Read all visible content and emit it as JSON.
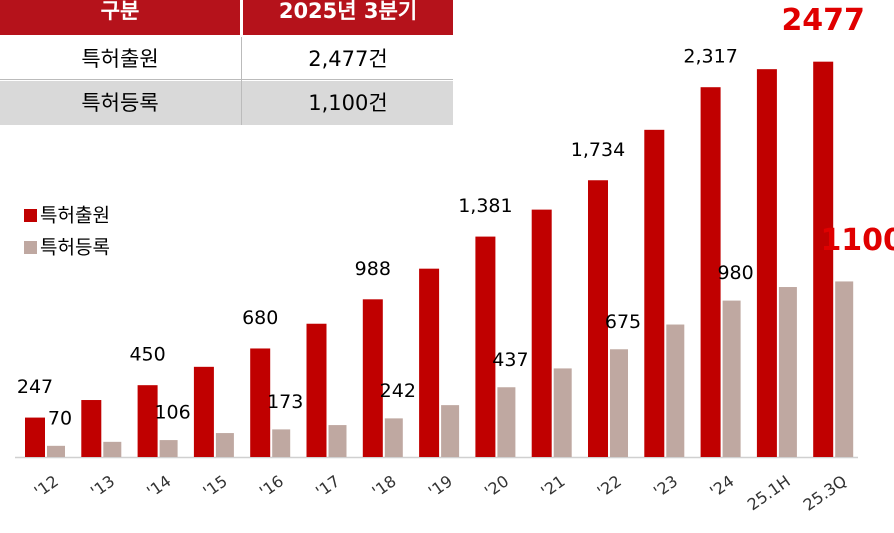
{
  "table": {
    "header": [
      "구분",
      "2025년 3분기"
    ],
    "rows": [
      [
        "특허출원",
        "2,477건"
      ],
      [
        "특허등록",
        "1,100건"
      ]
    ]
  },
  "chart_data": {
    "type": "bar",
    "categories": [
      "'12",
      "'13",
      "'14",
      "'15",
      "'16",
      "'17",
      "'18",
      "'19",
      "'20",
      "'21",
      "'22",
      "'23",
      "'24",
      "25.1H",
      "25.3Q"
    ],
    "series": [
      {
        "name": "특허출원",
        "color": "#c00000",
        "values": [
          247,
          357,
          450,
          565,
          680,
          835,
          988,
          1180,
          1381,
          1550,
          1734,
          2050,
          2317,
          2430,
          2477
        ],
        "value_labels": [
          "247",
          null,
          "450",
          null,
          "680",
          null,
          "988",
          null,
          "1,381",
          null,
          "1,734",
          null,
          "2,317",
          null,
          "2477"
        ]
      },
      {
        "name": "특허등록",
        "color": "#bfa8a1",
        "values": [
          70,
          95,
          106,
          150,
          173,
          200,
          242,
          325,
          437,
          555,
          675,
          830,
          980,
          1065,
          1100
        ],
        "value_labels": [
          "70",
          null,
          "106",
          null,
          "173",
          null,
          "242",
          null,
          "437",
          null,
          "675",
          null,
          "980",
          null,
          "1100"
        ]
      }
    ],
    "ylim": [
      0,
      2500
    ]
  }
}
